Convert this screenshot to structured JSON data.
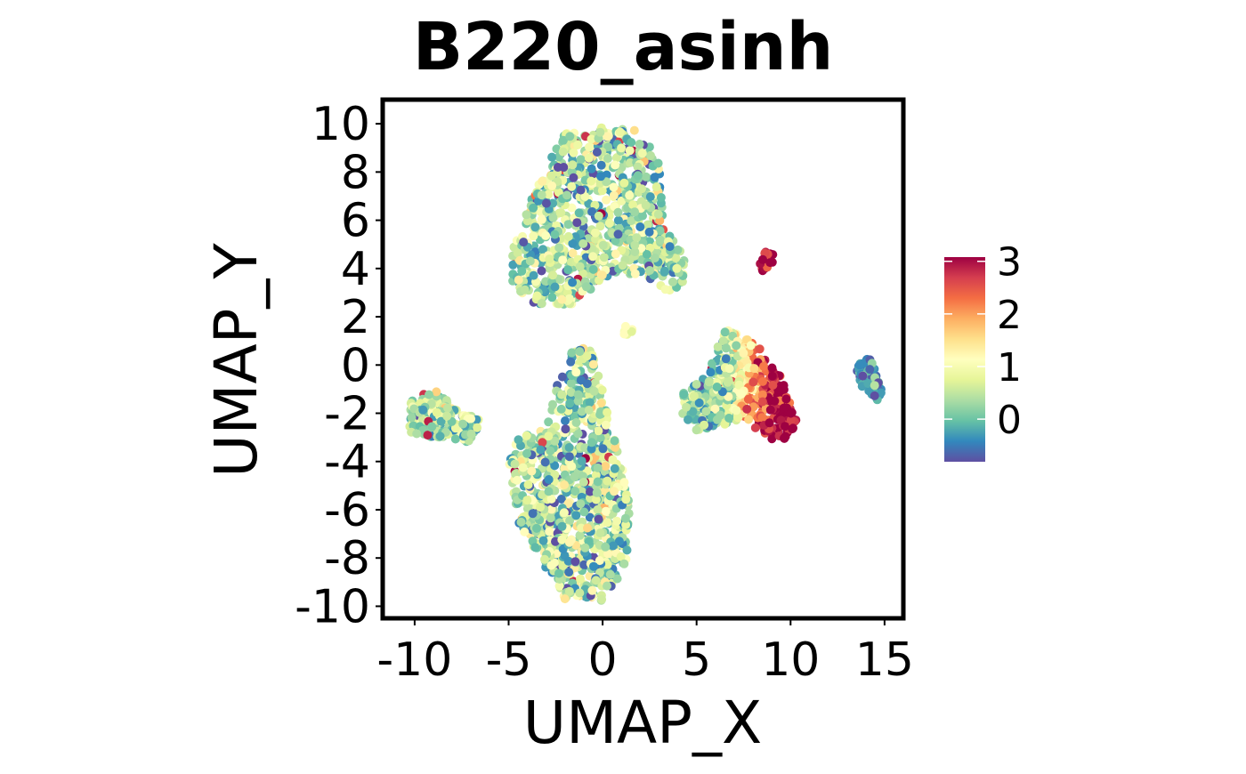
{
  "chart_data": {
    "type": "scatter",
    "title": "B220_asinh",
    "xlabel": "UMAP_X",
    "ylabel": "UMAP_Y",
    "xlim": [
      -11.7,
      16.0
    ],
    "ylim": [
      -10.5,
      11.0
    ],
    "xticks": [
      -10,
      -5,
      0,
      5,
      10,
      15
    ],
    "xtick_labels": [
      "-10",
      "-5",
      "0",
      "5",
      "10",
      "15"
    ],
    "yticks": [
      -10,
      -8,
      -6,
      -4,
      -2,
      0,
      2,
      4,
      6,
      8,
      10
    ],
    "ytick_labels": [
      "-10",
      "-8",
      "-6",
      "-4",
      "-2",
      "0",
      "2",
      "4",
      "6",
      "8",
      "10"
    ],
    "grid": false,
    "colorbar": {
      "label_values": [
        0,
        1,
        2,
        3
      ],
      "labels": [
        "0",
        "1",
        "2",
        "3"
      ],
      "range": [
        -0.81,
        3.08
      ],
      "palette": [
        "#5e4fa2",
        "#3288bd",
        "#66c2a5",
        "#abdda4",
        "#e6f598",
        "#ffffbf",
        "#fee08b",
        "#fdae61",
        "#f46d43",
        "#d53e4f",
        "#9e0142"
      ],
      "placement": "right"
    },
    "clusters": [
      {
        "name": "upper-cluster",
        "n": 900,
        "mean_value": 0.35,
        "sd": 0.55,
        "outline": [
          [
            -4.8,
            4.8
          ],
          [
            -3.5,
            7.5
          ],
          [
            -2,
            9.6
          ],
          [
            0.5,
            9.9
          ],
          [
            2,
            9.7
          ],
          [
            3,
            8.5
          ],
          [
            3.2,
            6
          ],
          [
            4.5,
            4.2
          ],
          [
            4.5,
            3.5
          ],
          [
            3.5,
            3
          ],
          [
            2,
            3.8
          ],
          [
            0,
            3.6
          ],
          [
            -1.5,
            2.5
          ],
          [
            -4,
            2.5
          ],
          [
            -4.8,
            3.5
          ]
        ]
      },
      {
        "name": "lower-cluster",
        "n": 900,
        "mean_value": 0.35,
        "sd": 0.6,
        "outline": [
          [
            -1.5,
            0.8
          ],
          [
            -0.5,
            0.6
          ],
          [
            0,
            -1
          ],
          [
            1,
            -4
          ],
          [
            1.5,
            -6
          ],
          [
            1.2,
            -8.5
          ],
          [
            0,
            -9.8
          ],
          [
            -2,
            -9.7
          ],
          [
            -3,
            -8.5
          ],
          [
            -4.5,
            -6.5
          ],
          [
            -5,
            -4
          ],
          [
            -4.8,
            -3
          ],
          [
            -3,
            -2.6
          ],
          [
            -2.5,
            -1
          ],
          [
            -1.8,
            0.5
          ]
        ]
      },
      {
        "name": "left-cluster",
        "n": 220,
        "mean_value": 0.4,
        "sd": 0.45,
        "outline": [
          [
            -10.2,
            -1.5
          ],
          [
            -9,
            -1
          ],
          [
            -7.8,
            -1.8
          ],
          [
            -6.5,
            -2.3
          ],
          [
            -7,
            -3.2
          ],
          [
            -9,
            -3
          ],
          [
            -10.3,
            -2.8
          ]
        ]
      },
      {
        "name": "b-cell-cluster",
        "n": 500,
        "mean_value": 0.3,
        "sd": 0.4,
        "gradient_x": [
          6.5,
          9.2
        ],
        "outline": [
          [
            4.2,
            -1.2
          ],
          [
            5.5,
            -0.5
          ],
          [
            6,
            0.5
          ],
          [
            6.5,
            1.5
          ],
          [
            7.5,
            1.2
          ],
          [
            8.5,
            0.6
          ],
          [
            9.5,
            -0.5
          ],
          [
            10.3,
            -2.3
          ],
          [
            10,
            -3
          ],
          [
            9,
            -3.2
          ],
          [
            7.5,
            -2.2
          ],
          [
            6,
            -2.6
          ],
          [
            5,
            -2.7
          ],
          [
            4.2,
            -2
          ]
        ]
      },
      {
        "name": "small-top-right-cluster",
        "n": 15,
        "mean_value": 2.9,
        "sd": 0.3,
        "outline": [
          [
            8.2,
            4.2
          ],
          [
            8.6,
            4.7
          ],
          [
            9.1,
            4.6
          ],
          [
            9.0,
            4.1
          ],
          [
            8.5,
            3.9
          ]
        ]
      },
      {
        "name": "far-right-cluster",
        "n": 80,
        "mean_value": -0.4,
        "sd": 0.3,
        "outline": [
          [
            13.6,
            0.2
          ],
          [
            14.3,
            0.3
          ],
          [
            14.9,
            -1.2
          ],
          [
            14.6,
            -1.5
          ],
          [
            13.8,
            -0.9
          ],
          [
            13.5,
            -0.3
          ]
        ]
      },
      {
        "name": "small-mid-cluster",
        "n": 6,
        "mean_value": 0.9,
        "sd": 0.2,
        "outline": [
          [
            1.1,
            1.8
          ],
          [
            1.6,
            1.8
          ],
          [
            1.6,
            1.2
          ],
          [
            1.1,
            1.2
          ]
        ]
      }
    ]
  }
}
